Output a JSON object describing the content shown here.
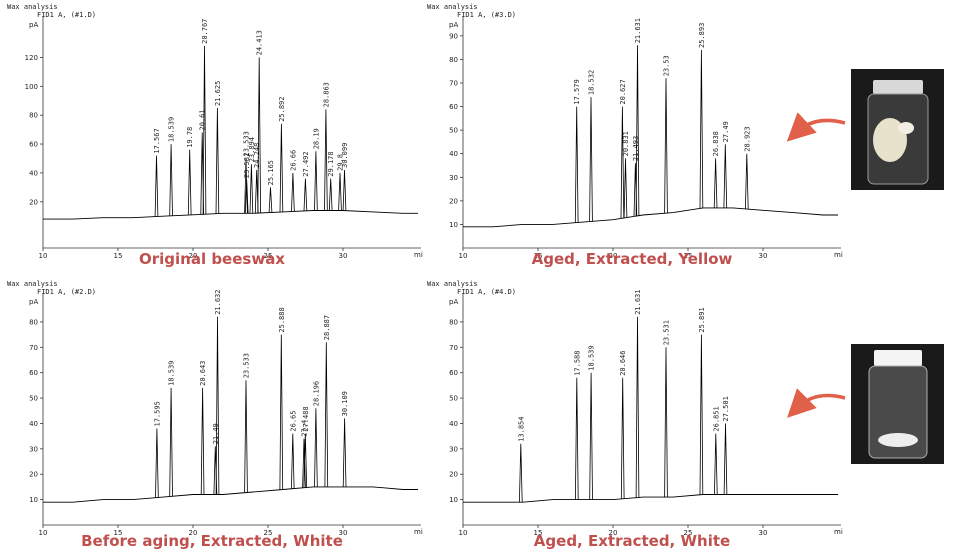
{
  "chart_data": [
    {
      "type": "chromatogram",
      "header": "Wax analysis",
      "subheader": "FID1 A, (#1.D)",
      "y_unit": "pA",
      "x_unit": "mi",
      "caption": "Original beeswax",
      "color": "#000000",
      "xlim": [
        10,
        35
      ],
      "ylim": [
        -12,
        148
      ],
      "xticks": [
        10,
        15,
        20,
        25,
        30
      ],
      "yticks": [
        20,
        40,
        60,
        80,
        100,
        120
      ],
      "baseline": {
        "x": [
          10,
          12,
          14,
          16,
          18,
          20,
          22,
          24,
          26,
          28,
          30,
          32,
          34,
          35
        ],
        "values": [
          8,
          8,
          9,
          9,
          10,
          11,
          12,
          12,
          13,
          14,
          14,
          13,
          12,
          12
        ]
      },
      "peaks": {
        "x": [
          17.567,
          18.539,
          19.78,
          20.61,
          20.767,
          21.625,
          23.533,
          23.581,
          23.894,
          24.248,
          24.413,
          25.165,
          25.892,
          26.66,
          27.492,
          28.19,
          28.863,
          29.178,
          29.8,
          30.099
        ],
        "values": [
          52,
          60,
          56,
          68,
          128,
          85,
          50,
          35,
          46,
          42,
          120,
          30,
          74,
          40,
          36,
          55,
          84,
          36,
          40,
          42
        ]
      }
    },
    {
      "type": "chromatogram",
      "header": "Wax analysis",
      "subheader": "FID1 A, (#3.D)",
      "y_unit": "pA",
      "x_unit": "mi",
      "caption": "Aged, Extracted, Yellow",
      "color": "#000000",
      "xlim": [
        10,
        35
      ],
      "ylim": [
        0,
        98
      ],
      "xticks": [
        10,
        15,
        20,
        25,
        30
      ],
      "yticks": [
        10,
        20,
        30,
        40,
        50,
        60,
        70,
        80,
        90
      ],
      "baseline": {
        "x": [
          10,
          12,
          14,
          16,
          18,
          20,
          22,
          24,
          26,
          28,
          30,
          32,
          34,
          35
        ],
        "values": [
          9,
          9,
          10,
          10,
          11,
          12,
          14,
          15,
          17,
          17,
          16,
          15,
          14,
          14
        ]
      },
      "peaks": {
        "x": [
          17.579,
          18.532,
          20.627,
          20.831,
          21.493,
          21.631,
          23.53,
          25.893,
          26.838,
          27.49,
          28.923
        ],
        "values": [
          60,
          64,
          60,
          38,
          36,
          86,
          72,
          84,
          38,
          44,
          40
        ]
      }
    },
    {
      "type": "chromatogram",
      "header": "Wax analysis",
      "subheader": "FID1 A, (#2.D)",
      "y_unit": "pA",
      "x_unit": "mi",
      "caption": "Before aging, Extracted, White",
      "color": "#000000",
      "xlim": [
        10,
        35
      ],
      "ylim": [
        0,
        91
      ],
      "xticks": [
        10,
        15,
        20,
        25,
        30
      ],
      "yticks": [
        10,
        20,
        30,
        40,
        50,
        60,
        70,
        80
      ],
      "baseline": {
        "x": [
          10,
          12,
          14,
          16,
          18,
          20,
          22,
          24,
          26,
          28,
          30,
          32,
          34,
          35
        ],
        "values": [
          9,
          9,
          10,
          10,
          11,
          12,
          12,
          13,
          14,
          15,
          15,
          15,
          14,
          14
        ]
      },
      "peaks": {
        "x": [
          17.595,
          18.539,
          20.643,
          21.49,
          21.632,
          23.533,
          25.888,
          26.65,
          27.4,
          27.488,
          28.196,
          28.887,
          30.109
        ],
        "values": [
          38,
          54,
          54,
          31,
          82,
          57,
          75,
          36,
          34,
          36,
          46,
          72,
          42
        ]
      }
    },
    {
      "type": "chromatogram",
      "header": "Wax analysis",
      "subheader": "FID1 A, (#4.D)",
      "y_unit": "pA",
      "x_unit": "mi",
      "caption": "Aged, Extracted, White",
      "color": "#000000",
      "xlim": [
        10,
        35
      ],
      "ylim": [
        0,
        91
      ],
      "xticks": [
        10,
        15,
        20,
        25,
        30
      ],
      "yticks": [
        10,
        20,
        30,
        40,
        50,
        60,
        70,
        80
      ],
      "baseline": {
        "x": [
          10,
          12,
          14,
          16,
          18,
          20,
          22,
          24,
          26,
          28,
          30,
          32,
          34,
          35
        ],
        "values": [
          9,
          9,
          9,
          10,
          10,
          10,
          11,
          11,
          12,
          12,
          12,
          12,
          12,
          12
        ]
      },
      "peaks": {
        "x": [
          13.854,
          17.588,
          18.539,
          20.646,
          21.631,
          23.531,
          25.891,
          26.851,
          27.501
        ],
        "values": [
          32,
          58,
          60,
          58,
          82,
          70,
          75,
          36,
          40
        ]
      }
    }
  ]
}
